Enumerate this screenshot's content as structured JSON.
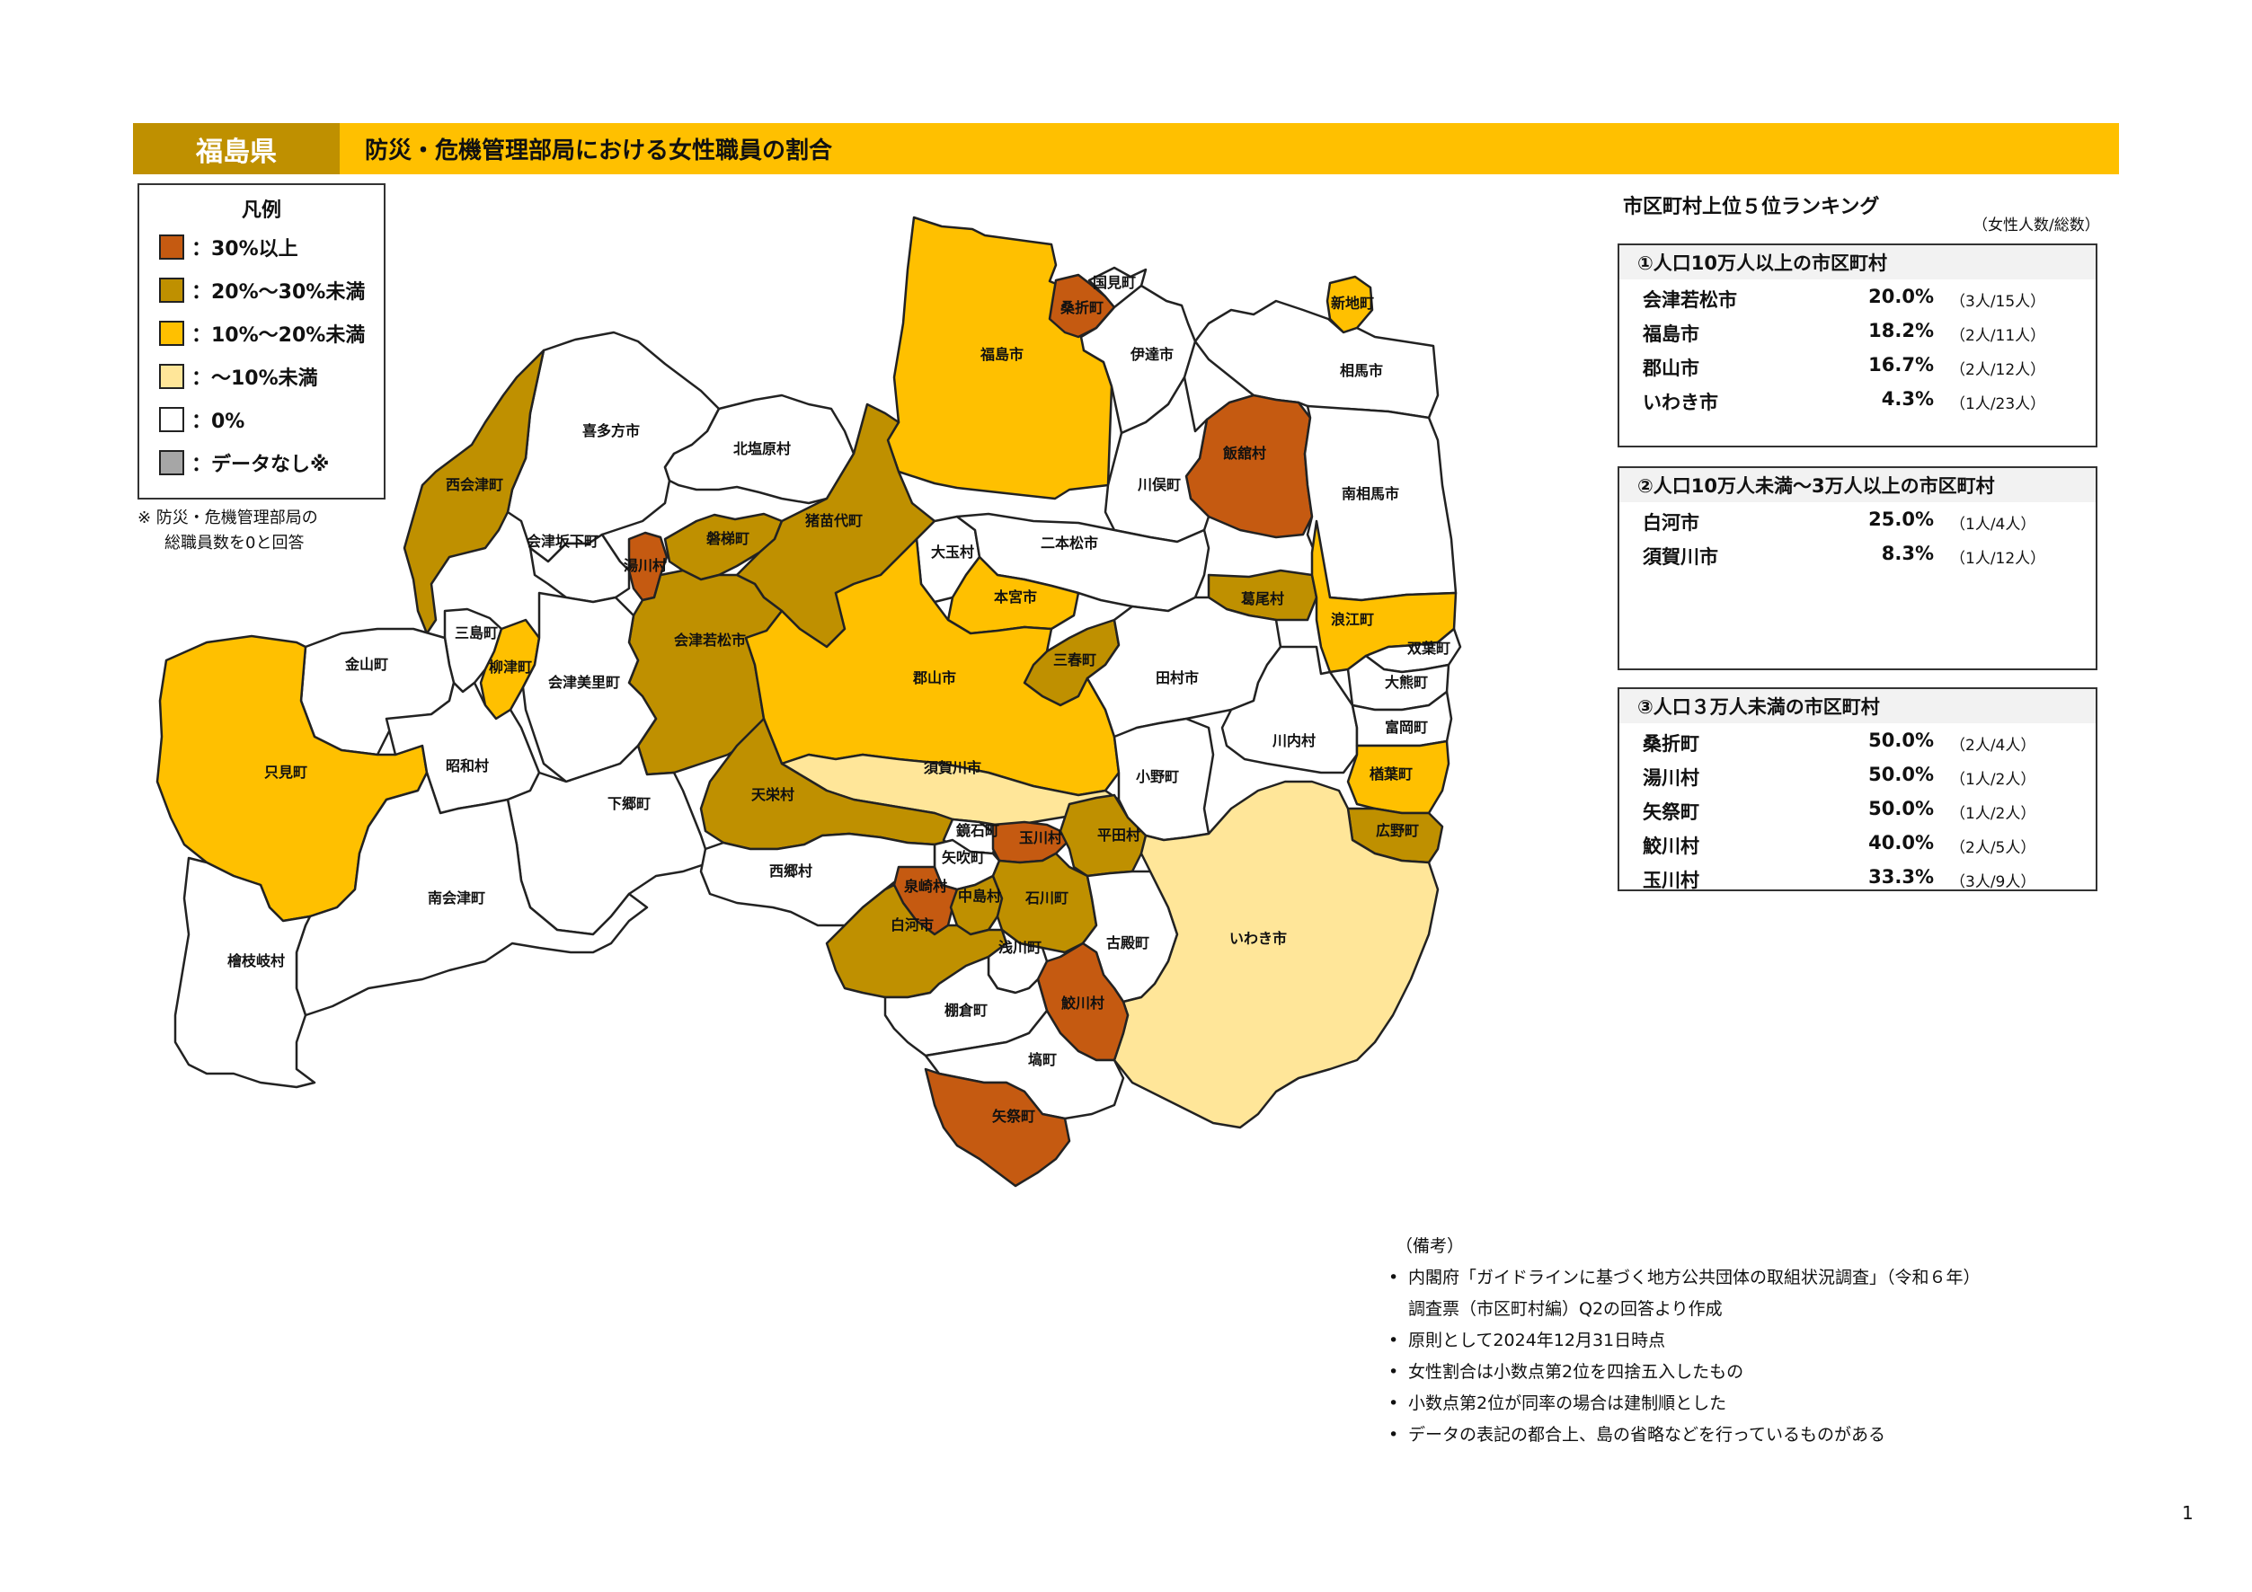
{
  "header": {
    "prefecture": "福島県",
    "title": "防災・危機管理部局における女性職員の割合"
  },
  "legend": {
    "title": "凡例",
    "items": [
      {
        "label": "：30%以上",
        "color": "#C55A11"
      },
      {
        "label": "：20%～30%未満",
        "color": "#BF9000"
      },
      {
        "label": "：10%～20%未満",
        "color": "#FFC000"
      },
      {
        "label": "：～10%未満",
        "color": "#FFE699"
      },
      {
        "label": "：0%",
        "color": "#FFFFFF"
      },
      {
        "label": "：データなし※",
        "color": "#A6A6A6"
      }
    ],
    "note_line1": "※ 防災・危機管理部局の",
    "note_line2": "総職員数を0と回答"
  },
  "map": {
    "regions": [
      {
        "name": "福島市",
        "cls": "c10"
      },
      {
        "name": "桑折町",
        "cls": "c30"
      },
      {
        "name": "国見町",
        "cls": "c0"
      },
      {
        "name": "伊達市",
        "cls": "c0"
      },
      {
        "name": "新地町",
        "cls": "c10"
      },
      {
        "name": "相馬市",
        "cls": "c0"
      },
      {
        "name": "飯舘村",
        "cls": "c30"
      },
      {
        "name": "南相馬市",
        "cls": "c0"
      },
      {
        "name": "川俣町",
        "cls": "c0"
      },
      {
        "name": "喜多方市",
        "cls": "c0"
      },
      {
        "name": "北塩原村",
        "cls": "c0"
      },
      {
        "name": "西会津町",
        "cls": "c20"
      },
      {
        "name": "会津坂下町",
        "cls": "c0"
      },
      {
        "name": "湯川村",
        "cls": "c30"
      },
      {
        "name": "磐梯町",
        "cls": "c20"
      },
      {
        "name": "猪苗代町",
        "cls": "c20"
      },
      {
        "name": "会津若松市",
        "cls": "c20"
      },
      {
        "name": "大玉村",
        "cls": "c0"
      },
      {
        "name": "二本松市",
        "cls": "c0"
      },
      {
        "name": "本宮市",
        "cls": "c10"
      },
      {
        "name": "葛尾村",
        "cls": "c20"
      },
      {
        "name": "浪江町",
        "cls": "c10"
      },
      {
        "name": "三島町",
        "cls": "c0"
      },
      {
        "name": "柳津町",
        "cls": "c10"
      },
      {
        "name": "会津美里町",
        "cls": "c0"
      },
      {
        "name": "金山町",
        "cls": "c0"
      },
      {
        "name": "三春町",
        "cls": "c20"
      },
      {
        "name": "郡山市",
        "cls": "c10"
      },
      {
        "name": "田村市",
        "cls": "c0"
      },
      {
        "name": "双葉町",
        "cls": "c0"
      },
      {
        "name": "大熊町",
        "cls": "c0"
      },
      {
        "name": "只見町",
        "cls": "c10"
      },
      {
        "name": "昭和村",
        "cls": "c0"
      },
      {
        "name": "下郷町",
        "cls": "c0"
      },
      {
        "name": "須賀川市",
        "cls": "c5"
      },
      {
        "name": "川内村",
        "cls": "c0"
      },
      {
        "name": "富岡町",
        "cls": "c0"
      },
      {
        "name": "楢葉町",
        "cls": "c10"
      },
      {
        "name": "広野町",
        "cls": "c20"
      },
      {
        "name": "小野町",
        "cls": "c0"
      },
      {
        "name": "天栄村",
        "cls": "c20"
      },
      {
        "name": "鏡石町",
        "cls": "c0"
      },
      {
        "name": "玉川村",
        "cls": "c30"
      },
      {
        "name": "平田村",
        "cls": "c20"
      },
      {
        "name": "矢吹町",
        "cls": "c0"
      },
      {
        "name": "西郷村",
        "cls": "c0"
      },
      {
        "name": "泉崎村",
        "cls": "c30"
      },
      {
        "name": "中島村",
        "cls": "c20"
      },
      {
        "name": "石川町",
        "cls": "c20"
      },
      {
        "name": "南会津町",
        "cls": "c0"
      },
      {
        "name": "白河市",
        "cls": "c20"
      },
      {
        "name": "浅川町",
        "cls": "c0"
      },
      {
        "name": "古殿町",
        "cls": "c0"
      },
      {
        "name": "いわき市",
        "cls": "c5"
      },
      {
        "name": "檜枝岐村",
        "cls": "c0"
      },
      {
        "name": "鮫川村",
        "cls": "c30"
      },
      {
        "name": "棚倉町",
        "cls": "c0"
      },
      {
        "name": "塙町",
        "cls": "c0"
      },
      {
        "name": "矢祭町",
        "cls": "c30"
      }
    ]
  },
  "ranking": {
    "title": "市区町村上位５位ランキング",
    "unit": "（女性人数/総数）",
    "groups": [
      {
        "heading": "①人口10万人以上の市区町村",
        "rows": [
          {
            "name": "会津若松市",
            "pct": "20.0%",
            "count": "（3人/15人）"
          },
          {
            "name": "福島市",
            "pct": "18.2%",
            "count": "（2人/11人）"
          },
          {
            "name": "郡山市",
            "pct": "16.7%",
            "count": "（2人/12人）"
          },
          {
            "name": "いわき市",
            "pct": "4.3%",
            "count": "（1人/23人）"
          }
        ]
      },
      {
        "heading": "②人口10万人未満～3万人以上の市区町村",
        "rows": [
          {
            "name": "白河市",
            "pct": "25.0%",
            "count": "（1人/4人）"
          },
          {
            "name": "須賀川市",
            "pct": "8.3%",
            "count": "（1人/12人）"
          }
        ]
      },
      {
        "heading": "③人口３万人未満の市区町村",
        "rows": [
          {
            "name": "桑折町",
            "pct": "50.0%",
            "count": "（2人/4人）"
          },
          {
            "name": "湯川村",
            "pct": "50.0%",
            "count": "（1人/2人）"
          },
          {
            "name": "矢祭町",
            "pct": "50.0%",
            "count": "（1人/2人）"
          },
          {
            "name": "鮫川村",
            "pct": "40.0%",
            "count": "（2人/5人）"
          },
          {
            "name": "玉川村",
            "pct": "33.3%",
            "count": "（3人/9人）"
          }
        ]
      }
    ]
  },
  "notes": {
    "title": "（備考）",
    "bullet": "•",
    "items": [
      "内閣府「ガイドラインに基づく地方公共団体の取組状況調査」（令和６年）",
      "調査票（市区町村編）Q2の回答より作成",
      "原則として2024年12月31日時点",
      "女性割合は小数点第2位を四捨五入したもの",
      "小数点第2位が同率の場合は建制順とした",
      "データの表記の都合上、島の省略などを行っているものがある"
    ]
  },
  "page_number": "1"
}
